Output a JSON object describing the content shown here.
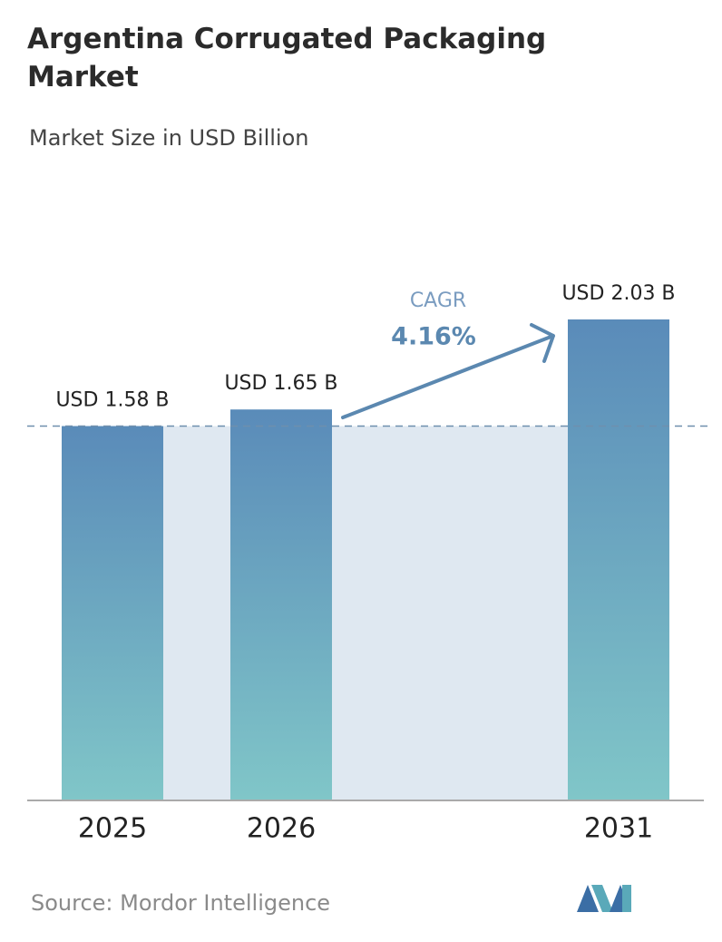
{
  "chart_data": {
    "type": "bar",
    "title": "Argentina Corrugated Packaging Market",
    "subtitle": "Market Size in USD Billion",
    "categories": [
      "2025",
      "2026",
      "2031"
    ],
    "values": [
      1.58,
      1.65,
      2.03
    ],
    "value_labels": [
      "USD 1.58 B",
      "USD 1.65 B",
      "USD 2.03 B"
    ],
    "annotations": {
      "cagr_label": "CAGR",
      "cagr_value": "4.16%"
    },
    "source": "Source: Mordor Intelligence"
  }
}
